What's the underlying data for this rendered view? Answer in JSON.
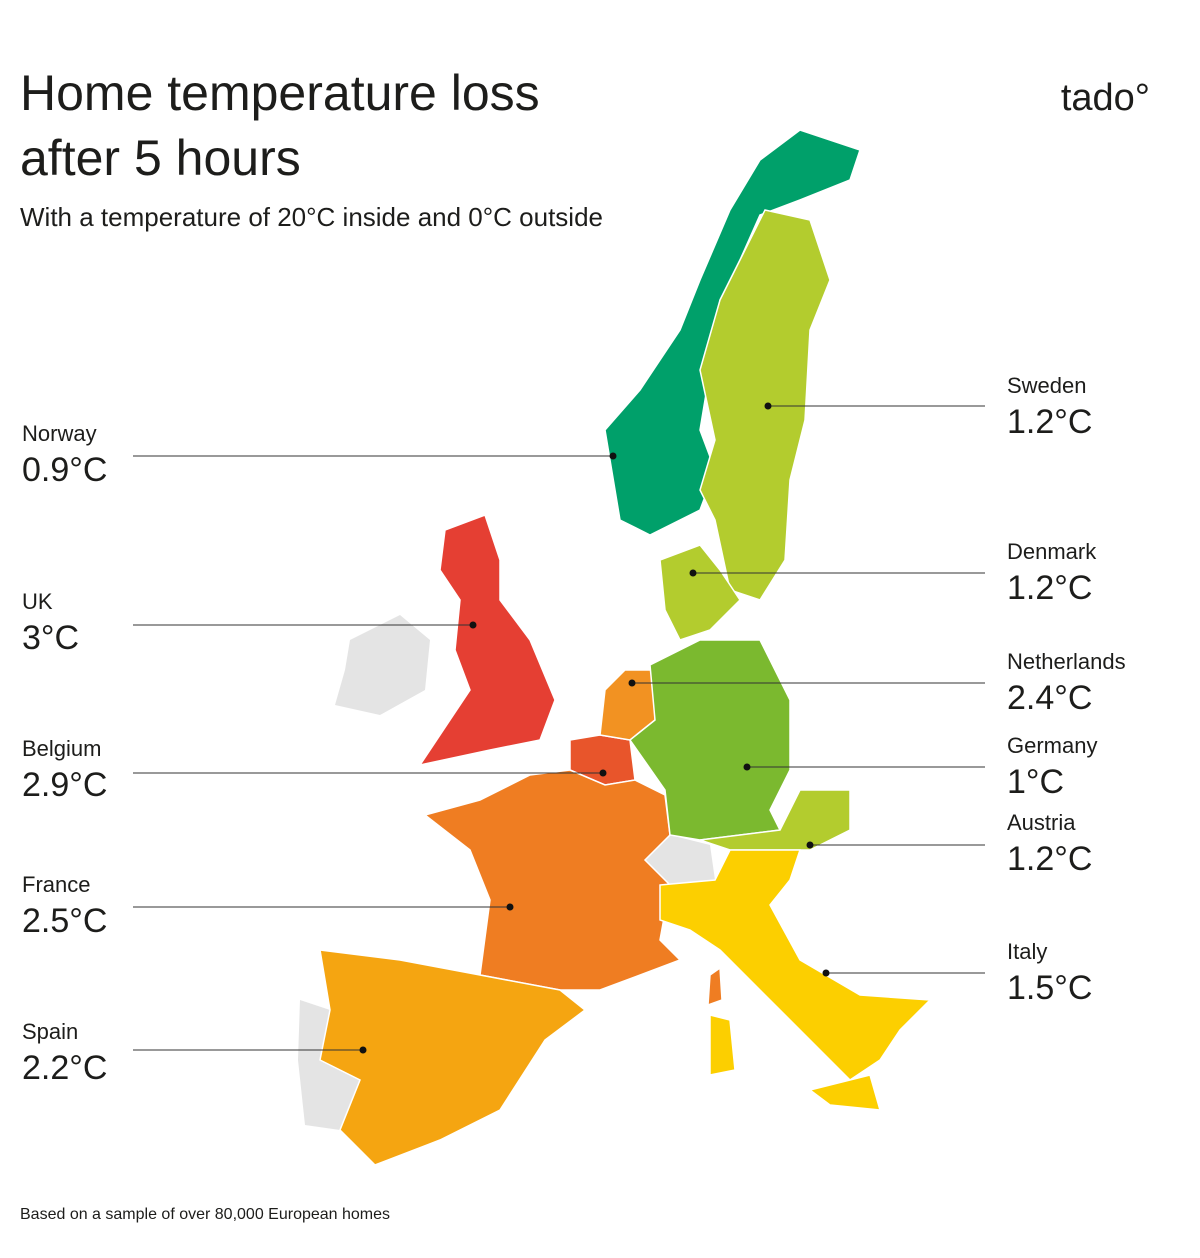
{
  "header": {
    "title_lines": [
      "Home temperature loss",
      "after 5 hours"
    ],
    "subtitle": "With a temperature of 20°C inside and 0°C outside",
    "logo": "tado°"
  },
  "countries": [
    {
      "name": "Norway",
      "value": "0.9°C",
      "color": "#00a06a"
    },
    {
      "name": "UK",
      "value": "3°C",
      "color": "#e53f33"
    },
    {
      "name": "Belgium",
      "value": "2.9°C",
      "color": "#e8552b"
    },
    {
      "name": "France",
      "value": "2.5°C",
      "color": "#ef7d22"
    },
    {
      "name": "Spain",
      "value": "2.2°C",
      "color": "#f5a511"
    },
    {
      "name": "Sweden",
      "value": "1.2°C",
      "color": "#b3cc2e"
    },
    {
      "name": "Denmark",
      "value": "1.2°C",
      "color": "#b3cc2e"
    },
    {
      "name": "Netherlands",
      "value": "2.4°C",
      "color": "#f29222"
    },
    {
      "name": "Germany",
      "value": "1°C",
      "color": "#7bb92f"
    },
    {
      "name": "Austria",
      "value": "1.2°C",
      "color": "#b3cc2e"
    },
    {
      "name": "Italy",
      "value": "1.5°C",
      "color": "#fccf00"
    }
  ],
  "footnote": "Based on a sample of over 80,000 European homes"
}
